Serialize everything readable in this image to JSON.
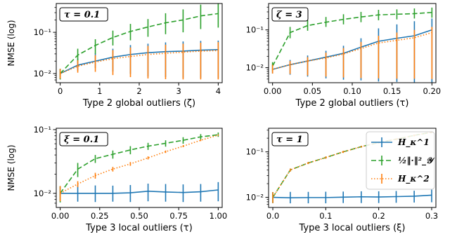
{
  "colors": {
    "blue": "#1f77b4",
    "green": "#2ca02c",
    "orange": "#ff7f0e"
  },
  "legend": {
    "placement": "top-right of bottom-right panel",
    "entries": [
      {
        "label": "H_κ^1",
        "color": "#1f77b4",
        "style": "solid"
      },
      {
        "label": "½‖·‖²_𝒴",
        "color": "#2ca02c",
        "style": "dashed"
      },
      {
        "label": "H_κ^2",
        "color": "#ff7f0e",
        "style": "dotted"
      }
    ]
  },
  "chart_data": [
    {
      "type": "line",
      "annotation": "τ = 0.1",
      "xlabel": "Type 2 global outliers (ζ)",
      "ylabel": "NMSE (log)",
      "yscale": "log",
      "xlim": [
        -0.1,
        4.1
      ],
      "ylim": [
        0.006,
        0.5
      ],
      "xticks": [
        0,
        1,
        2,
        3,
        4
      ],
      "xtick_labels": [
        "0",
        "1",
        "2",
        "3",
        "4"
      ],
      "yticks": [
        0.01,
        0.1
      ],
      "ytick_labels": [
        "10⁻²",
        "10⁻¹"
      ],
      "x": [
        0,
        0.444,
        0.889,
        1.333,
        1.778,
        2.222,
        2.667,
        3.111,
        3.556,
        4.0
      ],
      "series": [
        {
          "name": "H_κ^1",
          "color": "#1f77b4",
          "style": "solid",
          "y": [
            0.01,
            0.016,
            0.02,
            0.025,
            0.029,
            0.032,
            0.034,
            0.035,
            0.037,
            0.038
          ],
          "err_low": [
            0.0072,
            0.0118,
            0.0136,
            0.0112,
            0.0098,
            0.0085,
            0.0082,
            0.0078,
            0.0078,
            0.0077
          ],
          "err_high": [
            0.013,
            0.023,
            0.031,
            0.04,
            0.049,
            0.053,
            0.057,
            0.06,
            0.062,
            0.063
          ]
        },
        {
          "name": "½‖·‖²_𝒴",
          "color": "#2ca02c",
          "style": "dashed",
          "y": [
            0.01,
            0.028,
            0.048,
            0.075,
            0.105,
            0.135,
            0.17,
            0.2,
            0.25,
            0.285
          ],
          "err_low": [
            0.0072,
            0.018,
            0.03,
            0.048,
            0.064,
            0.078,
            0.09,
            0.1,
            0.12,
            0.13
          ],
          "err_high": [
            0.013,
            0.04,
            0.068,
            0.11,
            0.16,
            0.21,
            0.29,
            0.36,
            0.47,
            0.56
          ]
        },
        {
          "name": "H_κ^2",
          "color": "#ff7f0e",
          "style": "dotted",
          "y": [
            0.01,
            0.015,
            0.019,
            0.023,
            0.026,
            0.029,
            0.031,
            0.033,
            0.035,
            0.036
          ],
          "err_low": [
            0.0075,
            0.0105,
            0.011,
            0.0092,
            0.0082,
            0.0076,
            0.0073,
            0.0072,
            0.0072,
            0.0072
          ],
          "err_high": [
            0.013,
            0.021,
            0.028,
            0.037,
            0.043,
            0.047,
            0.05,
            0.053,
            0.056,
            0.058
          ]
        }
      ]
    },
    {
      "type": "line",
      "annotation": "ζ = 3",
      "xlabel": "Type 2 global outliers (τ)",
      "ylabel": "",
      "yscale": "log",
      "xlim": [
        -0.005,
        0.205
      ],
      "ylim": [
        0.004,
        0.5
      ],
      "xticks": [
        0,
        0.05,
        0.1,
        0.15,
        0.2
      ],
      "xtick_labels": [
        "0.00",
        "0.05",
        "0.10",
        "0.15",
        "0.20"
      ],
      "yticks": [
        0.01,
        0.1
      ],
      "ytick_labels": [
        "10⁻²",
        "10⁻¹"
      ],
      "x": [
        0,
        0.022,
        0.044,
        0.067,
        0.089,
        0.111,
        0.133,
        0.156,
        0.178,
        0.2
      ],
      "series": [
        {
          "name": "H_κ^1",
          "color": "#1f77b4",
          "style": "solid",
          "y": [
            0.009,
            0.012,
            0.015,
            0.019,
            0.024,
            0.035,
            0.05,
            0.06,
            0.07,
            0.1
          ],
          "err_low": [
            0.007,
            0.0065,
            0.0058,
            0.0052,
            0.0048,
            0.0046,
            0.0043,
            0.0042,
            0.0041,
            0.0041
          ],
          "err_high": [
            0.012,
            0.016,
            0.021,
            0.028,
            0.038,
            0.06,
            0.11,
            0.14,
            0.17,
            0.2
          ]
        },
        {
          "name": "½‖·‖²_𝒴",
          "color": "#2ca02c",
          "style": "dashed",
          "y": [
            0.011,
            0.085,
            0.13,
            0.16,
            0.19,
            0.22,
            0.25,
            0.26,
            0.27,
            0.29
          ],
          "err_low": [
            0.008,
            0.06,
            0.095,
            0.12,
            0.14,
            0.16,
            0.18,
            0.19,
            0.2,
            0.21
          ],
          "err_high": [
            0.014,
            0.12,
            0.18,
            0.22,
            0.26,
            0.3,
            0.34,
            0.35,
            0.37,
            0.39
          ]
        },
        {
          "name": "H_κ^2",
          "color": "#ff7f0e",
          "style": "dotted",
          "y": [
            0.009,
            0.012,
            0.015,
            0.018,
            0.023,
            0.032,
            0.045,
            0.053,
            0.062,
            0.085
          ],
          "err_low": [
            0.007,
            0.0068,
            0.0062,
            0.0058,
            0.0055,
            0.0053,
            0.0052,
            0.0051,
            0.0051,
            0.005
          ],
          "err_high": [
            0.012,
            0.015,
            0.019,
            0.025,
            0.033,
            0.048,
            0.07,
            0.085,
            0.1,
            0.12
          ]
        }
      ]
    },
    {
      "type": "line",
      "annotation": "ξ = 0.1",
      "xlabel": "Type 3 local outliers (τ)",
      "ylabel": "NMSE (log)",
      "yscale": "log",
      "xlim": [
        -0.025,
        1.025
      ],
      "ylim": [
        0.006,
        0.105
      ],
      "xticks": [
        0,
        0.25,
        0.5,
        0.75,
        1.0
      ],
      "xtick_labels": [
        "0.00",
        "0.25",
        "0.50",
        "0.75",
        "1.00"
      ],
      "yticks": [
        0.01,
        0.1
      ],
      "ytick_labels": [
        "10⁻²",
        "10⁻¹"
      ],
      "x": [
        0,
        0.111,
        0.222,
        0.333,
        0.444,
        0.556,
        0.667,
        0.778,
        0.889,
        1.0
      ],
      "series": [
        {
          "name": "H_κ^1",
          "color": "#1f77b4",
          "style": "solid",
          "y": [
            0.01,
            0.01,
            0.01,
            0.01,
            0.0102,
            0.0108,
            0.0105,
            0.0103,
            0.0106,
            0.0113
          ],
          "err_low": [
            0.0075,
            0.0074,
            0.0073,
            0.0074,
            0.0073,
            0.0075,
            0.0074,
            0.0073,
            0.0074,
            0.0075
          ],
          "err_high": [
            0.013,
            0.0135,
            0.0133,
            0.0132,
            0.0135,
            0.0142,
            0.014,
            0.0138,
            0.014,
            0.015
          ]
        },
        {
          "name": "½‖·‖²_𝒴",
          "color": "#2ca02c",
          "style": "dashed",
          "y": [
            0.01,
            0.024,
            0.035,
            0.041,
            0.048,
            0.055,
            0.061,
            0.068,
            0.077,
            0.083
          ],
          "err_low": [
            0.0072,
            0.018,
            0.03,
            0.035,
            0.041,
            0.048,
            0.054,
            0.06,
            0.07,
            0.077
          ],
          "err_high": [
            0.013,
            0.03,
            0.04,
            0.047,
            0.055,
            0.062,
            0.068,
            0.076,
            0.085,
            0.09
          ]
        },
        {
          "name": "H_κ^2",
          "color": "#ff7f0e",
          "style": "dotted",
          "y": [
            0.01,
            0.014,
            0.019,
            0.024,
            0.029,
            0.036,
            0.045,
            0.055,
            0.068,
            0.082
          ],
          "err_low": [
            0.0075,
            0.0125,
            0.017,
            0.022,
            0.027,
            0.034,
            0.043,
            0.053,
            0.066,
            0.08
          ],
          "err_high": [
            0.013,
            0.0155,
            0.021,
            0.026,
            0.031,
            0.038,
            0.047,
            0.057,
            0.07,
            0.084
          ]
        }
      ]
    },
    {
      "type": "line",
      "annotation": "τ = 1",
      "xlabel": "Type 3 local outliers (ξ)",
      "ylabel": "",
      "yscale": "log",
      "xlim": [
        -0.008,
        0.308
      ],
      "ylim": [
        0.006,
        0.33
      ],
      "xticks": [
        0,
        0.1,
        0.2,
        0.3
      ],
      "xtick_labels": [
        "0.0",
        "0.1",
        "0.2",
        "0.3"
      ],
      "yticks": [
        0.01,
        0.1
      ],
      "ytick_labels": [
        "10⁻²",
        "10⁻¹"
      ],
      "x": [
        0,
        0.033,
        0.067,
        0.1,
        0.133,
        0.167,
        0.2,
        0.233,
        0.267,
        0.3
      ],
      "series": [
        {
          "name": "H_κ^1",
          "color": "#1f77b4",
          "style": "solid",
          "y": [
            0.01,
            0.0098,
            0.0099,
            0.0099,
            0.0101,
            0.0103,
            0.0102,
            0.0104,
            0.0106,
            0.0112
          ],
          "err_low": [
            0.0075,
            0.0074,
            0.0074,
            0.0074,
            0.0075,
            0.0075,
            0.0075,
            0.0076,
            0.0077,
            0.0078
          ],
          "err_high": [
            0.013,
            0.0132,
            0.0132,
            0.0133,
            0.0134,
            0.0136,
            0.0136,
            0.0138,
            0.014,
            0.0148
          ]
        },
        {
          "name": "½‖·‖²_𝒴",
          "color": "#2ca02c",
          "style": "dashed",
          "y": [
            0.01,
            0.04,
            0.057,
            0.075,
            0.1,
            0.13,
            0.16,
            0.19,
            0.23,
            0.27
          ],
          "err_low": [
            0.0075,
            0.037,
            0.054,
            0.071,
            0.095,
            0.124,
            0.153,
            0.182,
            0.22,
            0.26
          ],
          "err_high": [
            0.013,
            0.043,
            0.06,
            0.079,
            0.105,
            0.136,
            0.167,
            0.198,
            0.24,
            0.28
          ]
        },
        {
          "name": "H_κ^2",
          "color": "#ff7f0e",
          "style": "dotted",
          "y": [
            0.01,
            0.04,
            0.057,
            0.075,
            0.1,
            0.13,
            0.16,
            0.19,
            0.23,
            0.27
          ],
          "err_low": [
            0.0075,
            0.037,
            0.054,
            0.071,
            0.095,
            0.124,
            0.153,
            0.182,
            0.22,
            0.26
          ],
          "err_high": [
            0.013,
            0.043,
            0.06,
            0.079,
            0.105,
            0.136,
            0.167,
            0.198,
            0.24,
            0.28
          ]
        }
      ]
    }
  ]
}
